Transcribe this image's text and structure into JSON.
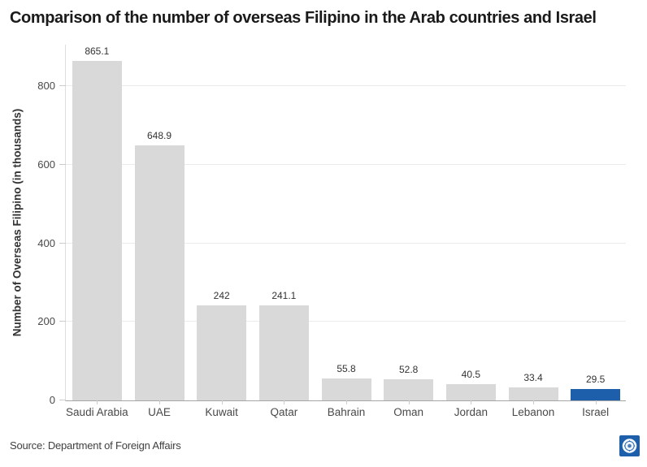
{
  "header": {
    "title": "Comparison of the number of overseas Filipino in the Arab countries and Israel"
  },
  "chart_data": {
    "type": "bar",
    "title": "Comparison of the number of overseas Filipino in the Arab countries and Israel",
    "xlabel": "",
    "ylabel": "Number of Overseas Filipino (in thousands)",
    "categories": [
      "Saudi Arabia",
      "UAE",
      "Kuwait",
      "Qatar",
      "Bahrain",
      "Oman",
      "Jordan",
      "Lebanon",
      "Israel"
    ],
    "values": [
      865.1,
      648.9,
      242,
      241.1,
      55.8,
      52.8,
      40.5,
      33.4,
      29.5
    ],
    "value_labels": [
      "865.1",
      "648.9",
      "242",
      "241.1",
      "55.8",
      "52.8",
      "40.5",
      "33.4",
      "29.5"
    ],
    "yticks": [
      0,
      200,
      400,
      600,
      800
    ],
    "ylim": [
      0,
      908
    ],
    "grid": "horizontal",
    "legend": "none",
    "bar_color_default": "#d9d9d9",
    "highlight_category": "Israel",
    "highlight_index": 8,
    "highlight_color": "#1d5fab"
  },
  "footer": {
    "source": "Source: Department of Foreign Affairs",
    "logo_icon": "dfa-seal-logo"
  },
  "colors": {
    "accent_blue": "#1d5fab",
    "bar_gray": "#d9d9d9",
    "gridline": "#ebebeb",
    "axis_line": "#a6a6a6",
    "title_text": "#1a1a1a",
    "label_text": "#494949"
  }
}
